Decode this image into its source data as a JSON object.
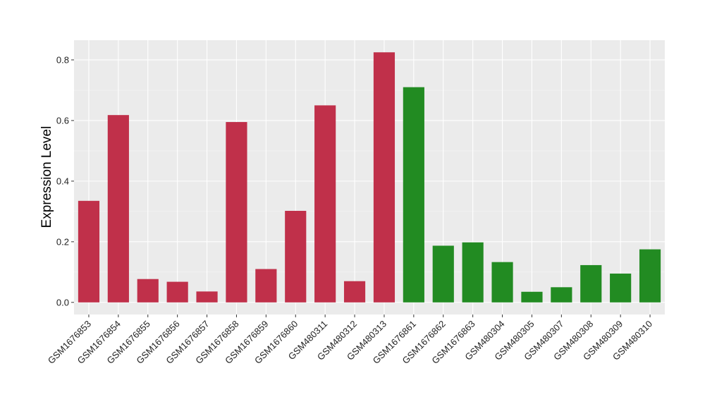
{
  "chart_data": {
    "type": "bar",
    "title": "",
    "xlabel": "",
    "ylabel": "Expression Level",
    "ylim": [
      -0.04,
      0.865
    ],
    "yticks": [
      0.0,
      0.2,
      0.4,
      0.6,
      0.8
    ],
    "ytick_labels": [
      "0.0",
      "0.2",
      "0.4",
      "0.6",
      "0.8"
    ],
    "grid": true,
    "categories": [
      "GSM1676853",
      "GSM1676854",
      "GSM1676855",
      "GSM1676856",
      "GSM1676857",
      "GSM1676858",
      "GSM1676859",
      "GSM1676860",
      "GSM480311",
      "GSM480312",
      "GSM480313",
      "GSM1676861",
      "GSM1676862",
      "GSM1676863",
      "GSM480304",
      "GSM480305",
      "GSM480307",
      "GSM480308",
      "GSM480309",
      "GSM480310"
    ],
    "values": [
      0.335,
      0.618,
      0.077,
      0.068,
      0.036,
      0.595,
      0.11,
      0.302,
      0.65,
      0.07,
      0.825,
      0.71,
      0.187,
      0.198,
      0.133,
      0.035,
      0.05,
      0.123,
      0.095,
      0.175
    ],
    "groups": [
      "red",
      "red",
      "red",
      "red",
      "red",
      "red",
      "red",
      "red",
      "red",
      "red",
      "red",
      "green",
      "green",
      "green",
      "green",
      "green",
      "green",
      "green",
      "green",
      "green"
    ],
    "colors": {
      "red": "#C0304A",
      "green": "#228B22",
      "panel": "#EBEBEB",
      "grid_major": "#FFFFFF",
      "grid_minor": "#F5F5F5"
    }
  }
}
